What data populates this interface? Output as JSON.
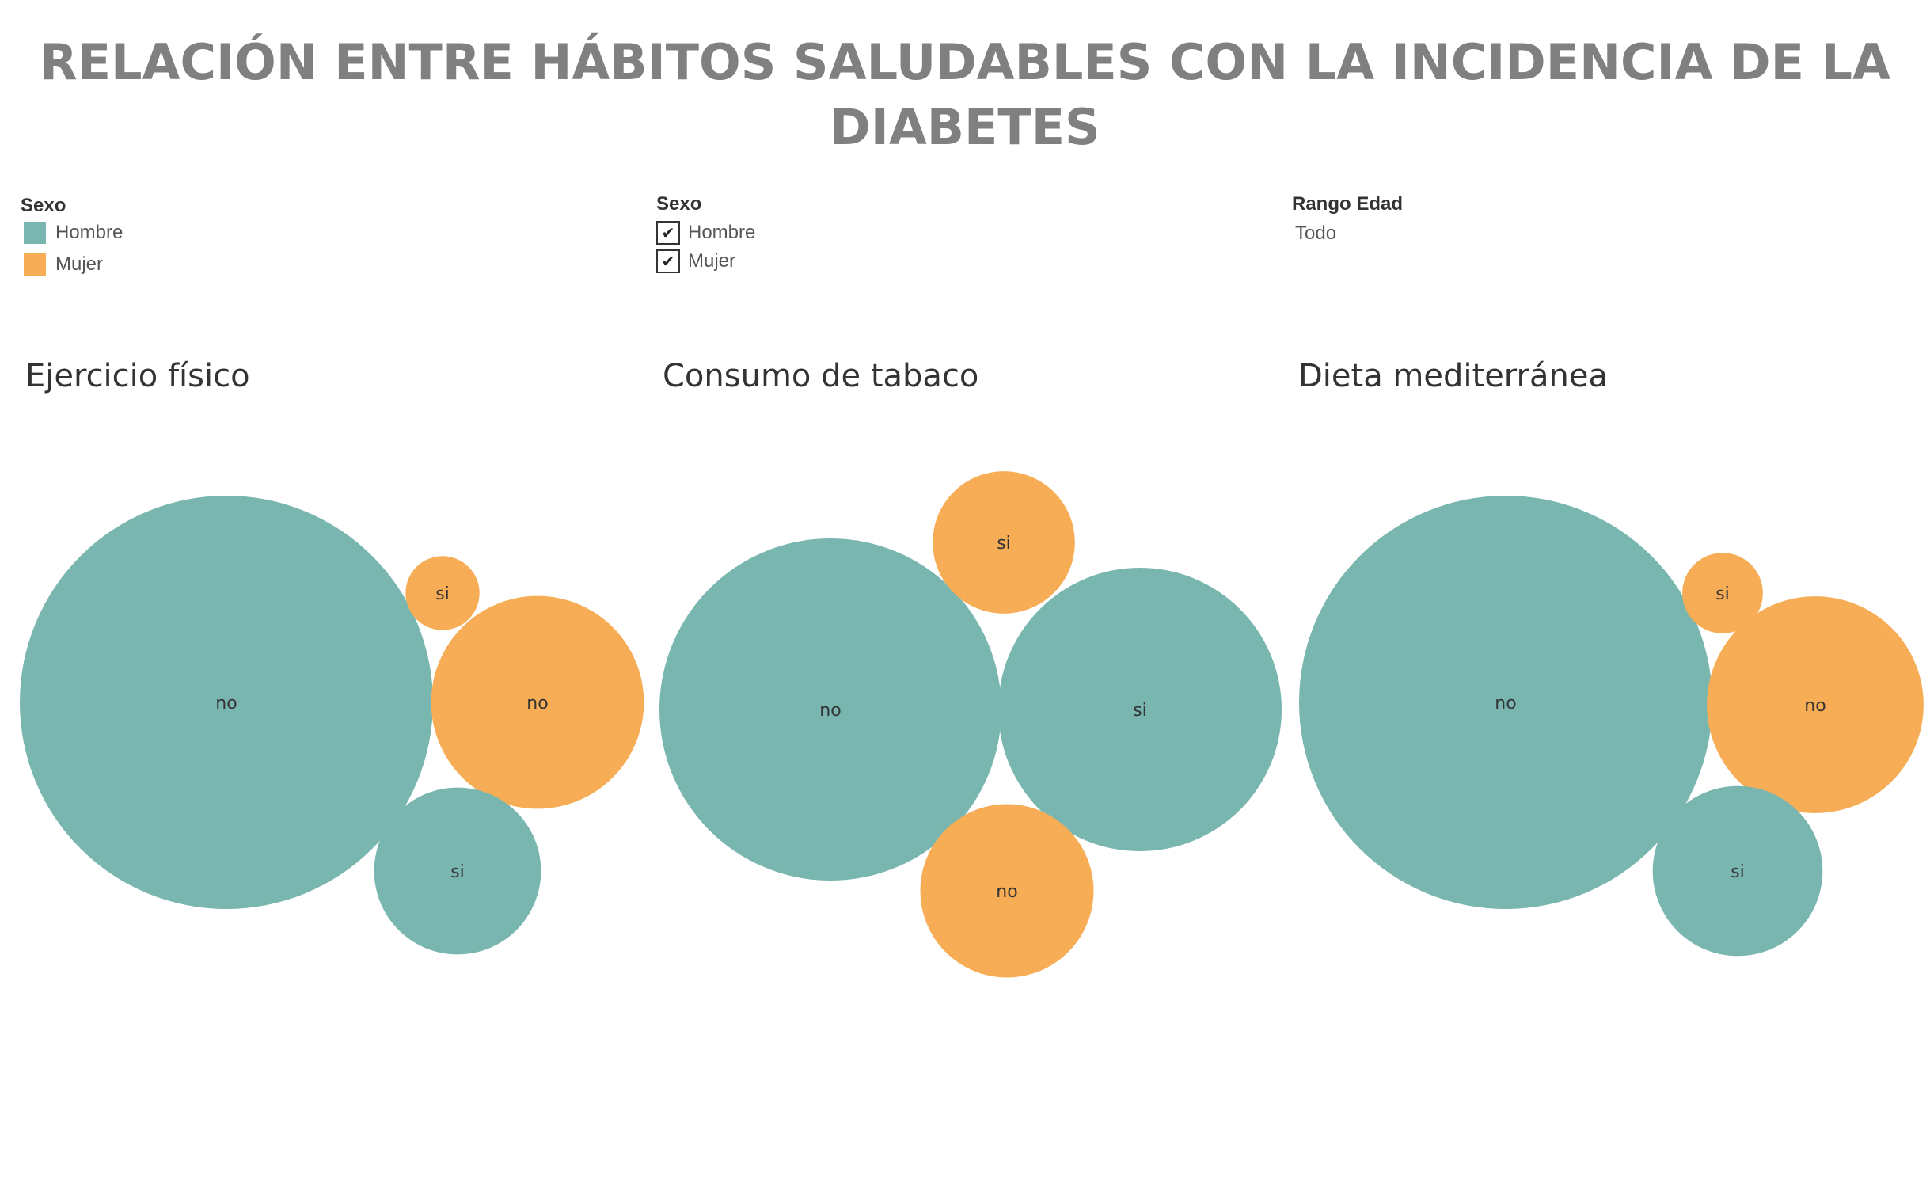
{
  "title": {
    "line1": "RELACIÓN ENTRE HÁBITOS SALUDABLES CON LA INCIDENCIA DE LA",
    "line2": "DIABETES"
  },
  "color_legend": {
    "title": "Sexo",
    "items": [
      {
        "label": "Hombre",
        "color": "#79b6b0"
      },
      {
        "label": "Mujer",
        "color": "#f6ad56"
      }
    ]
  },
  "sexo_filter": {
    "title": "Sexo",
    "options": [
      {
        "label": "Hombre",
        "checked": true
      },
      {
        "label": "Mujer",
        "checked": true
      }
    ]
  },
  "edad_filter": {
    "title": "Rango Edad",
    "value": "Todo"
  },
  "chart_data": [
    {
      "type": "packed-bubble",
      "title": "Ejercicio físico",
      "bubbles": [
        {
          "label": "no",
          "sexo": "Hombre",
          "relative_size": 1.0
        },
        {
          "label": "no",
          "sexo": "Mujer",
          "relative_size": 0.265
        },
        {
          "label": "si",
          "sexo": "Hombre",
          "relative_size": 0.163
        },
        {
          "label": "si",
          "sexo": "Mujer",
          "relative_size": 0.032
        }
      ]
    },
    {
      "type": "packed-bubble",
      "title": "Consumo de tabaco",
      "bubbles": [
        {
          "label": "no",
          "sexo": "Hombre",
          "relative_size": 1.0
        },
        {
          "label": "si",
          "sexo": "Hombre",
          "relative_size": 0.687
        },
        {
          "label": "no",
          "sexo": "Mujer",
          "relative_size": 0.257
        },
        {
          "label": "si",
          "sexo": "Mujer",
          "relative_size": 0.173
        }
      ]
    },
    {
      "type": "packed-bubble",
      "title": "Dieta mediterránea",
      "bubbles": [
        {
          "label": "no",
          "sexo": "Hombre",
          "relative_size": 1.0
        },
        {
          "label": "no",
          "sexo": "Mujer",
          "relative_size": 0.275
        },
        {
          "label": "si",
          "sexo": "Hombre",
          "relative_size": 0.169
        },
        {
          "label": "si",
          "sexo": "Mujer",
          "relative_size": 0.038
        }
      ]
    }
  ]
}
